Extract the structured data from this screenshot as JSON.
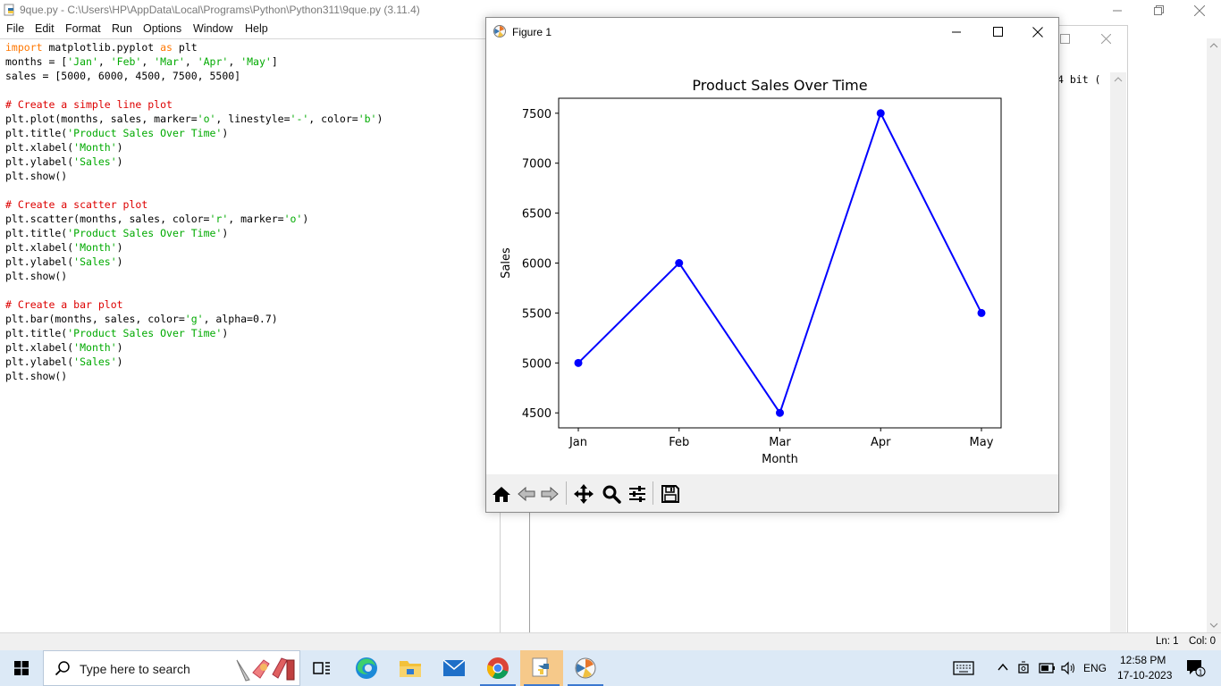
{
  "editor": {
    "title": "9que.py - C:\\Users\\HP\\AppData\\Local\\Programs\\Python\\Python311\\9que.py (3.11.4)",
    "menu": [
      "File",
      "Edit",
      "Format",
      "Run",
      "Options",
      "Window",
      "Help"
    ],
    "code_lines": [
      [
        {
          "t": "import",
          "c": "kw"
        },
        {
          "t": " matplotlib.pyplot "
        },
        {
          "t": "as",
          "c": "kw"
        },
        {
          "t": " plt"
        }
      ],
      [
        {
          "t": "months = ["
        },
        {
          "t": "'Jan'",
          "c": "st"
        },
        {
          "t": ", "
        },
        {
          "t": "'Feb'",
          "c": "st"
        },
        {
          "t": ", "
        },
        {
          "t": "'Mar'",
          "c": "st"
        },
        {
          "t": ", "
        },
        {
          "t": "'Apr'",
          "c": "st"
        },
        {
          "t": ", "
        },
        {
          "t": "'May'",
          "c": "st"
        },
        {
          "t": "]"
        }
      ],
      [
        {
          "t": "sales = [5000, 6000, 4500, 7500, 5500]"
        }
      ],
      [
        {
          "t": ""
        }
      ],
      [
        {
          "t": "# Create a simple line plot",
          "c": "cm"
        }
      ],
      [
        {
          "t": "plt.plot(months, sales, marker="
        },
        {
          "t": "'o'",
          "c": "st"
        },
        {
          "t": ", linestyle="
        },
        {
          "t": "'-'",
          "c": "st"
        },
        {
          "t": ", color="
        },
        {
          "t": "'b'",
          "c": "st"
        },
        {
          "t": ")"
        }
      ],
      [
        {
          "t": "plt.title("
        },
        {
          "t": "'Product Sales Over Time'",
          "c": "st"
        },
        {
          "t": ")"
        }
      ],
      [
        {
          "t": "plt.xlabel("
        },
        {
          "t": "'Month'",
          "c": "st"
        },
        {
          "t": ")"
        }
      ],
      [
        {
          "t": "plt.ylabel("
        },
        {
          "t": "'Sales'",
          "c": "st"
        },
        {
          "t": ")"
        }
      ],
      [
        {
          "t": "plt.show()"
        }
      ],
      [
        {
          "t": ""
        }
      ],
      [
        {
          "t": "# Create a scatter plot",
          "c": "cm"
        }
      ],
      [
        {
          "t": "plt.scatter(months, sales, color="
        },
        {
          "t": "'r'",
          "c": "st"
        },
        {
          "t": ", marker="
        },
        {
          "t": "'o'",
          "c": "st"
        },
        {
          "t": ")"
        }
      ],
      [
        {
          "t": "plt.title("
        },
        {
          "t": "'Product Sales Over Time'",
          "c": "st"
        },
        {
          "t": ")"
        }
      ],
      [
        {
          "t": "plt.xlabel("
        },
        {
          "t": "'Month'",
          "c": "st"
        },
        {
          "t": ")"
        }
      ],
      [
        {
          "t": "plt.ylabel("
        },
        {
          "t": "'Sales'",
          "c": "st"
        },
        {
          "t": ")"
        }
      ],
      [
        {
          "t": "plt.show()"
        }
      ],
      [
        {
          "t": ""
        }
      ],
      [
        {
          "t": "# Create a bar plot",
          "c": "cm"
        }
      ],
      [
        {
          "t": "plt.bar(months, sales, color="
        },
        {
          "t": "'g'",
          "c": "st"
        },
        {
          "t": ", alpha=0.7)"
        }
      ],
      [
        {
          "t": "plt.title("
        },
        {
          "t": "'Product Sales Over Time'",
          "c": "st"
        },
        {
          "t": ")"
        }
      ],
      [
        {
          "t": "plt.xlabel("
        },
        {
          "t": "'Month'",
          "c": "st"
        },
        {
          "t": ")"
        }
      ],
      [
        {
          "t": "plt.ylabel("
        },
        {
          "t": "'Sales'",
          "c": "st"
        },
        {
          "t": ")"
        }
      ],
      [
        {
          "t": "plt.show()"
        }
      ]
    ],
    "status_line": "Ln: 1",
    "status_col": "Col: 0"
  },
  "shell": {
    "partial_text": "4 bit ("
  },
  "figure": {
    "window_title": "Figure 1"
  },
  "chart_data": {
    "type": "line",
    "title": "Product Sales Over Time",
    "xlabel": "Month",
    "ylabel": "Sales",
    "categories": [
      "Jan",
      "Feb",
      "Mar",
      "Apr",
      "May"
    ],
    "series": [
      {
        "values": [
          5000,
          6000,
          4500,
          7500,
          5500
        ],
        "color": "#0000ff",
        "marker": "o"
      }
    ],
    "yticks": [
      4500,
      5000,
      5500,
      6000,
      6500,
      7000,
      7500
    ],
    "ylim": [
      4350,
      7650
    ],
    "grid": false
  },
  "taskbar": {
    "search_placeholder": "Type here to search",
    "language": "ENG",
    "time": "12:58 PM",
    "date": "17-10-2023",
    "notification_count": "1"
  },
  "colors": {
    "accent": "#3b78d0",
    "taskbar_bg": "#dce9f6",
    "line_color": "#0000ff"
  }
}
